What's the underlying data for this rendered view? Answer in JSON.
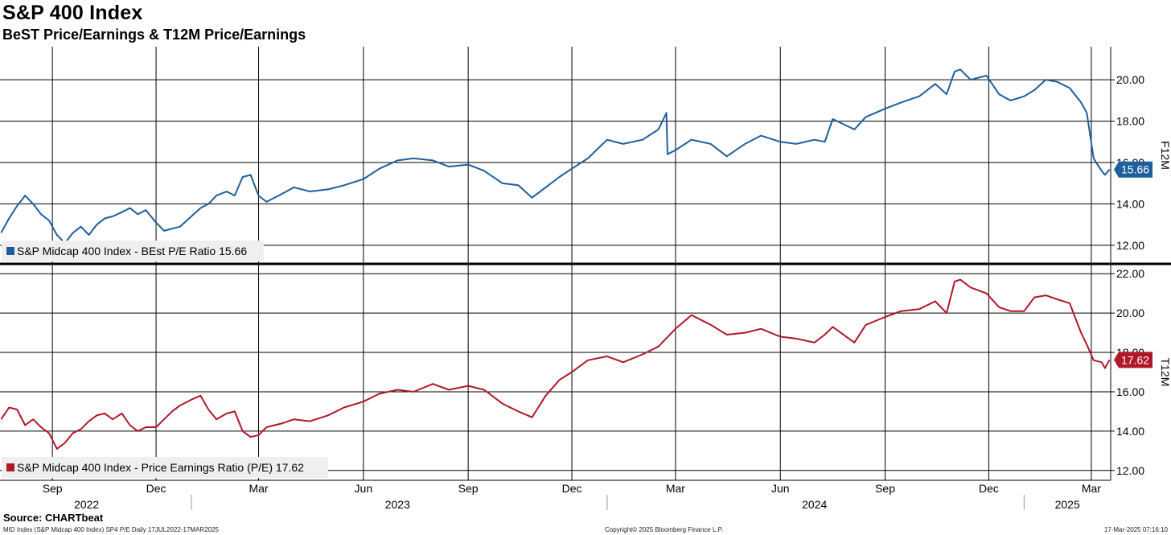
{
  "header": {
    "title": "S&P 400 Index",
    "subtitle": "BeST Price/Earnings & T12M Price/Earnings"
  },
  "footer": {
    "source": "Source: CHARTbeat",
    "left": "MID Index (S&P Midcap 400 Index) SP4 P/E  Daily 17JUL2022-17MAR2025",
    "center": "Copyright© 2025 Bloomberg Finance L.P.",
    "right": "17-Mar-2025 07:16:10"
  },
  "colors": {
    "blue": "#1f5f9c",
    "red": "#b0182a",
    "grid": "#000000",
    "legend_bg": "#efefef"
  },
  "chart_data": [
    {
      "type": "line",
      "axis_label": "F12M",
      "ylim": [
        11.1,
        21.6
      ],
      "yticks": [
        "12.00",
        "14.00",
        "16.00",
        "18.00",
        "20.00"
      ],
      "grid": true,
      "legend": "bottom-left",
      "last_value": "15.66",
      "series": [
        {
          "name": "S&P Midcap 400 Index - BEst P/E Ratio 15.66",
          "color": "#1f5f9c",
          "x": [
            "2022-07-18",
            "2022-07-25",
            "2022-08-01",
            "2022-08-08",
            "2022-08-15",
            "2022-08-22",
            "2022-08-29",
            "2022-09-05",
            "2022-09-12",
            "2022-09-19",
            "2022-09-26",
            "2022-10-03",
            "2022-10-10",
            "2022-10-17",
            "2022-10-24",
            "2022-11-01",
            "2022-11-08",
            "2022-11-15",
            "2022-11-22",
            "2022-12-01",
            "2022-12-08",
            "2022-12-15",
            "2022-12-22",
            "2023-01-01",
            "2023-01-09",
            "2023-01-16",
            "2023-01-23",
            "2023-02-01",
            "2023-02-08",
            "2023-02-15",
            "2023-02-22",
            "2023-03-01",
            "2023-03-08",
            "2023-03-15",
            "2023-03-22",
            "2023-04-01",
            "2023-04-15",
            "2023-05-01",
            "2023-05-15",
            "2023-06-01",
            "2023-06-15",
            "2023-07-01",
            "2023-07-15",
            "2023-08-01",
            "2023-08-15",
            "2023-09-01",
            "2023-09-15",
            "2023-10-01",
            "2023-10-15",
            "2023-10-27",
            "2023-11-08",
            "2023-11-20",
            "2023-12-01",
            "2023-12-15",
            "2024-01-01",
            "2024-01-15",
            "2024-02-01",
            "2024-02-15",
            "2024-02-22",
            "2024-02-23",
            "2024-03-01",
            "2024-03-15",
            "2024-04-01",
            "2024-04-15",
            "2024-05-01",
            "2024-05-15",
            "2024-06-01",
            "2024-06-15",
            "2024-07-01",
            "2024-07-10",
            "2024-07-17",
            "2024-08-05",
            "2024-08-15",
            "2024-09-01",
            "2024-09-15",
            "2024-10-01",
            "2024-10-15",
            "2024-10-25",
            "2024-11-01",
            "2024-11-06",
            "2024-11-15",
            "2024-11-29",
            "2024-12-10",
            "2024-12-20",
            "2025-01-01",
            "2025-01-10",
            "2025-01-20",
            "2025-01-30",
            "2025-02-10",
            "2025-02-20",
            "2025-02-25",
            "2025-03-03",
            "2025-03-10",
            "2025-03-13",
            "2025-03-17"
          ],
          "values": [
            12.6,
            13.3,
            13.9,
            14.4,
            14.0,
            13.5,
            13.2,
            12.5,
            12.1,
            12.6,
            12.9,
            12.5,
            13.0,
            13.3,
            13.4,
            13.6,
            13.8,
            13.5,
            13.7,
            13.1,
            12.7,
            12.8,
            12.9,
            13.4,
            13.8,
            14.0,
            14.4,
            14.6,
            14.4,
            15.3,
            15.4,
            14.4,
            14.1,
            14.3,
            14.5,
            14.8,
            14.6,
            14.7,
            14.9,
            15.2,
            15.7,
            16.1,
            16.2,
            16.1,
            15.8,
            15.9,
            15.6,
            15.0,
            14.9,
            14.3,
            14.8,
            15.3,
            15.7,
            16.2,
            17.1,
            16.9,
            17.1,
            17.6,
            18.4,
            16.4,
            16.6,
            17.1,
            16.9,
            16.3,
            16.9,
            17.3,
            17.0,
            16.9,
            17.1,
            17.0,
            18.1,
            17.6,
            18.2,
            18.6,
            18.9,
            19.2,
            19.8,
            19.3,
            20.4,
            20.5,
            20.0,
            20.2,
            19.3,
            19.0,
            19.2,
            19.5,
            20.0,
            19.9,
            19.6,
            18.9,
            18.4,
            16.2,
            15.6,
            15.4,
            15.66
          ]
        }
      ]
    },
    {
      "type": "line",
      "axis_label": "T12M",
      "ylim": [
        11.5,
        22.5
      ],
      "yticks": [
        "12.00",
        "14.00",
        "16.00",
        "18.00",
        "20.00",
        "22.00"
      ],
      "grid": true,
      "legend": "bottom-left",
      "last_value": "17.62",
      "series": [
        {
          "name": "S&P Midcap 400 Index - Price Earnings Ratio (P/E) 17.62",
          "color": "#b0182a",
          "x": [
            "2022-07-18",
            "2022-07-25",
            "2022-08-01",
            "2022-08-08",
            "2022-08-15",
            "2022-08-22",
            "2022-08-29",
            "2022-09-05",
            "2022-09-12",
            "2022-09-19",
            "2022-09-26",
            "2022-10-03",
            "2022-10-10",
            "2022-10-17",
            "2022-10-24",
            "2022-11-01",
            "2022-11-08",
            "2022-11-15",
            "2022-11-22",
            "2022-12-01",
            "2022-12-08",
            "2022-12-15",
            "2022-12-22",
            "2023-01-01",
            "2023-01-09",
            "2023-01-16",
            "2023-01-23",
            "2023-02-01",
            "2023-02-08",
            "2023-02-15",
            "2023-02-22",
            "2023-03-01",
            "2023-03-08",
            "2023-03-15",
            "2023-03-22",
            "2023-04-01",
            "2023-04-15",
            "2023-05-01",
            "2023-05-15",
            "2023-06-01",
            "2023-06-15",
            "2023-07-01",
            "2023-07-15",
            "2023-08-01",
            "2023-08-15",
            "2023-09-01",
            "2023-09-15",
            "2023-10-01",
            "2023-10-15",
            "2023-10-27",
            "2023-11-08",
            "2023-11-20",
            "2023-12-01",
            "2023-12-15",
            "2024-01-01",
            "2024-01-15",
            "2024-02-01",
            "2024-02-15",
            "2024-03-01",
            "2024-03-15",
            "2024-04-01",
            "2024-04-15",
            "2024-05-01",
            "2024-05-15",
            "2024-06-01",
            "2024-06-15",
            "2024-07-01",
            "2024-07-10",
            "2024-07-17",
            "2024-08-05",
            "2024-08-15",
            "2024-09-01",
            "2024-09-15",
            "2024-10-01",
            "2024-10-15",
            "2024-10-25",
            "2024-11-01",
            "2024-11-06",
            "2024-11-15",
            "2024-11-29",
            "2024-12-10",
            "2024-12-20",
            "2025-01-01",
            "2025-01-10",
            "2025-01-20",
            "2025-01-30",
            "2025-02-10",
            "2025-02-20",
            "2025-02-25",
            "2025-03-03",
            "2025-03-10",
            "2025-03-13",
            "2025-03-17"
          ],
          "values": [
            14.6,
            15.2,
            15.1,
            14.3,
            14.6,
            14.2,
            13.9,
            13.1,
            13.4,
            13.9,
            14.1,
            14.5,
            14.8,
            14.9,
            14.6,
            14.9,
            14.3,
            14.0,
            14.2,
            14.2,
            14.6,
            15.0,
            15.3,
            15.6,
            15.8,
            15.1,
            14.6,
            14.9,
            15.0,
            14.0,
            13.7,
            13.8,
            14.2,
            14.3,
            14.4,
            14.6,
            14.5,
            14.8,
            15.2,
            15.5,
            15.9,
            16.1,
            16.0,
            16.4,
            16.1,
            16.3,
            16.1,
            15.4,
            15.0,
            14.7,
            15.8,
            16.6,
            17.0,
            17.6,
            17.8,
            17.5,
            17.9,
            18.3,
            19.2,
            19.9,
            19.4,
            18.9,
            19.0,
            19.2,
            18.8,
            18.7,
            18.5,
            18.9,
            19.3,
            18.5,
            19.4,
            19.8,
            20.1,
            20.2,
            20.6,
            20.0,
            21.6,
            21.7,
            21.3,
            21.0,
            20.3,
            20.1,
            20.1,
            20.8,
            20.9,
            20.7,
            20.5,
            19.0,
            18.4,
            17.6,
            17.5,
            17.2,
            17.62
          ]
        }
      ]
    }
  ],
  "xaxis": {
    "months": [
      {
        "label": "Sep",
        "date": "2022-09-01"
      },
      {
        "label": "Dec",
        "date": "2022-12-01"
      },
      {
        "label": "Mar",
        "date": "2023-03-01"
      },
      {
        "label": "Jun",
        "date": "2023-06-01"
      },
      {
        "label": "Sep",
        "date": "2023-09-01"
      },
      {
        "label": "Dec",
        "date": "2023-12-01"
      },
      {
        "label": "Mar",
        "date": "2024-03-01"
      },
      {
        "label": "Jun",
        "date": "2024-06-01"
      },
      {
        "label": "Sep",
        "date": "2024-09-01"
      },
      {
        "label": "Dec",
        "date": "2024-12-01"
      },
      {
        "label": "Mar",
        "date": "2025-03-01"
      }
    ],
    "years": [
      {
        "label": "2022",
        "date": "2022-10-01"
      },
      {
        "label": "2023",
        "date": "2023-07-01"
      },
      {
        "label": "2024",
        "date": "2024-07-01"
      },
      {
        "label": "2025",
        "date": "2025-02-08"
      }
    ],
    "year_dividers": [
      "2023-01-01",
      "2024-01-01",
      "2025-01-01"
    ]
  }
}
